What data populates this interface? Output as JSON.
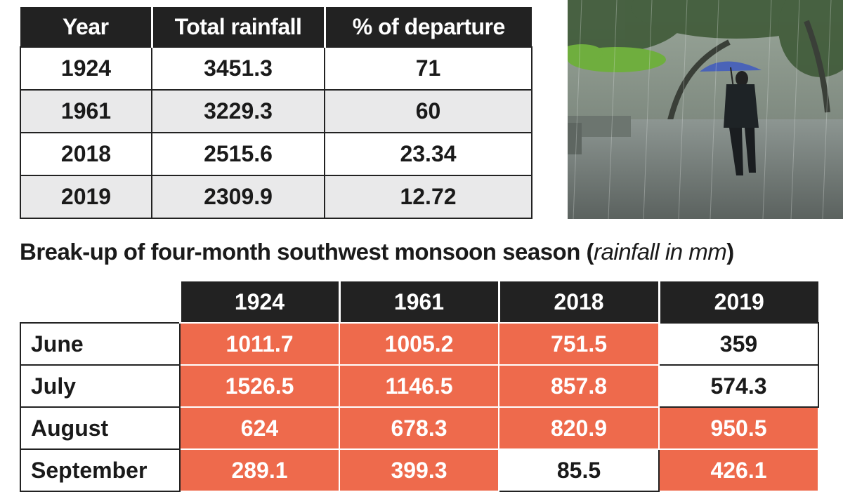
{
  "summary_table": {
    "headers": [
      "Year",
      "Total rainfall",
      "% of departure"
    ],
    "rows": [
      [
        "1924",
        "3451.3",
        "71"
      ],
      [
        "1961",
        "3229.3",
        "60"
      ],
      [
        "2018",
        "2515.6",
        "23.34"
      ],
      [
        "2019",
        "2309.9",
        "12.72"
      ]
    ]
  },
  "breakup": {
    "title_main": "Break-up of four-month southwest monsoon season (",
    "title_unit": "rainfall in mm",
    "title_close": ")",
    "years": [
      "1924",
      "1961",
      "2018",
      "2019"
    ],
    "rows": [
      {
        "month": "June",
        "values": [
          "1011.7",
          "1005.2",
          "751.5",
          "359"
        ],
        "highlight": [
          true,
          true,
          true,
          false
        ]
      },
      {
        "month": "July",
        "values": [
          "1526.5",
          "1146.5",
          "857.8",
          "574.3"
        ],
        "highlight": [
          true,
          true,
          true,
          false
        ]
      },
      {
        "month": "August",
        "values": [
          "624",
          "678.3",
          "820.9",
          "950.5"
        ],
        "highlight": [
          true,
          true,
          true,
          true
        ]
      },
      {
        "month": "September",
        "values": [
          "289.1",
          "399.3",
          "85.5",
          "426.1"
        ],
        "highlight": [
          true,
          true,
          false,
          true
        ]
      }
    ]
  },
  "colors": {
    "header_bg": "#222222",
    "highlight_cell": "#ee6a4c",
    "alt_row": "#e9e9ea"
  },
  "chart_data": [
    {
      "type": "table",
      "columns": [
        "Year",
        "Total rainfall",
        "% of departure"
      ],
      "rows": [
        [
          1924,
          3451.3,
          71
        ],
        [
          1961,
          3229.3,
          60
        ],
        [
          2018,
          2515.6,
          23.34
        ],
        [
          2019,
          2309.9,
          12.72
        ]
      ]
    },
    {
      "type": "table",
      "title": "Break-up of four-month southwest monsoon season (rainfall in mm)",
      "columns": [
        "",
        "1924",
        "1961",
        "2018",
        "2019"
      ],
      "rows": [
        [
          "June",
          1011.7,
          1005.2,
          751.5,
          359
        ],
        [
          "July",
          1526.5,
          1146.5,
          857.8,
          574.3
        ],
        [
          "August",
          624,
          678.3,
          820.9,
          950.5
        ],
        [
          "September",
          289.1,
          399.3,
          85.5,
          426.1
        ]
      ]
    }
  ]
}
